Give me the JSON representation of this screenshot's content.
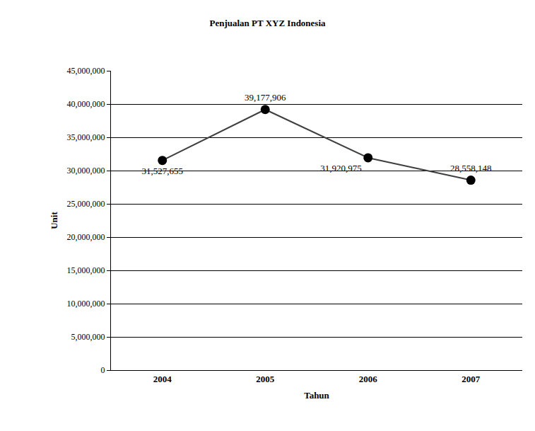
{
  "chart_data": {
    "type": "line",
    "title": "Penjualan PT XYZ Indonesia",
    "x_label": "Tahun",
    "y_label": "Unit",
    "categories": [
      "2004",
      "2005",
      "2006",
      "2007"
    ],
    "values": [
      31527655,
      39177906,
      31920975,
      28558148
    ],
    "value_labels": [
      "31,527,655",
      "39,177,906",
      "31,920,975",
      "28,558,148"
    ],
    "color": "#404040",
    "marker": "circle",
    "line_style": "solid",
    "data_labels": true,
    "grid": true,
    "ylim": [
      0,
      45000000
    ],
    "yticks": [
      0,
      {
        "value": 5000000,
        "label": "5,000,000"
      },
      {
        "value": 10000000,
        "label": "10,000,000"
      },
      {
        "value": 15000000,
        "label": "15,000,000"
      },
      {
        "value": 20000000,
        "label": "20,000,000"
      },
      {
        "value": 25000000,
        "label": "25,000,000"
      },
      {
        "value": 30000000,
        "label": "30,000,000"
      },
      {
        "value": 35000000,
        "label": "35,000,000"
      },
      {
        "value": 40000000,
        "label": "40,000,000"
      },
      {
        "value": 45000000,
        "label": "45,000,000"
      }
    ]
  }
}
